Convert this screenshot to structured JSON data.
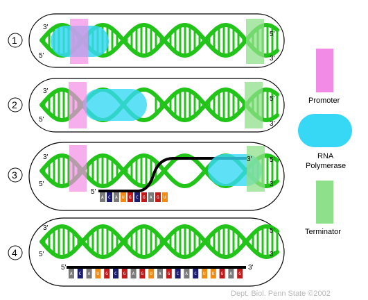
{
  "panels": [
    {
      "step": "1",
      "end_left_top": "3'",
      "end_left_bottom": "5'",
      "end_right_top": "5'",
      "end_right_bottom": "3'"
    },
    {
      "step": "2",
      "end_left_top": "3'",
      "end_left_bottom": "5'",
      "end_right_top": "5'",
      "end_right_bottom": "3'"
    },
    {
      "step": "3",
      "end_left_top": "3'",
      "end_left_bottom": "5'",
      "end_right_top": "5'",
      "end_right_bottom": "3'",
      "rna_5": "5'",
      "rna_3": "3'"
    },
    {
      "step": "4",
      "end_left_top": "3'",
      "end_left_bottom": "5'",
      "end_right_top": "5'",
      "end_right_bottom": "3'",
      "rna_5": "5'",
      "rna_3": "3'"
    }
  ],
  "legend": {
    "promoter": "Promoter",
    "rna_polymerase_line1": "RNA",
    "rna_polymerase_line2": "Polymerase",
    "terminator": "Terminator"
  },
  "colors": {
    "dna": "#22c41a",
    "promoter": "#f28be6",
    "polymerase": "#36d8f5",
    "terminator": "#8fe08a",
    "rna_backbone": "#000000",
    "base_A": "#7a7a7a",
    "base_C": "#1c1c70",
    "base_G": "#c01a1a",
    "base_U": "#f08c14"
  },
  "transcript_panel3": [
    "A",
    "C",
    "A",
    "U",
    "G",
    "C",
    "G",
    "A",
    "G",
    "U"
  ],
  "transcript_panel4": [
    "A",
    "C",
    "A",
    "U",
    "G",
    "C",
    "G",
    "A",
    "G",
    "U",
    "A",
    "G",
    "C",
    "A",
    "C",
    "U",
    "U",
    "G",
    "A",
    "G"
  ],
  "credit": "Dept. Biol. Penn State ©2002"
}
